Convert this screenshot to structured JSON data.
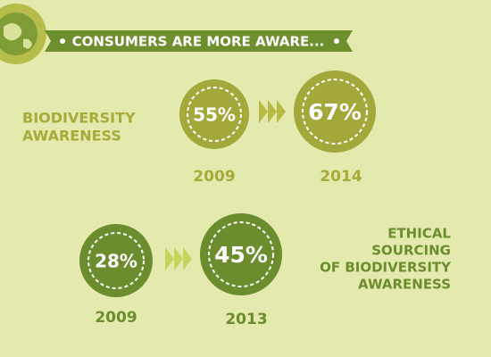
{
  "header": {
    "title": "CONSUMERS ARE MORE AWARE..."
  },
  "groups": [
    {
      "label": [
        "BIODIVERSITY",
        "AWARENESS"
      ],
      "before": {
        "value": "55%",
        "year": "2009"
      },
      "after": {
        "value": "67%",
        "year": "2014"
      }
    },
    {
      "label": [
        "ETHICAL",
        "SOURCING",
        "OF BIODIVERSITY",
        "AWARENESS"
      ],
      "before": {
        "value": "28%",
        "year": "2009"
      },
      "after": {
        "value": "45%",
        "year": "2013"
      }
    }
  ]
}
